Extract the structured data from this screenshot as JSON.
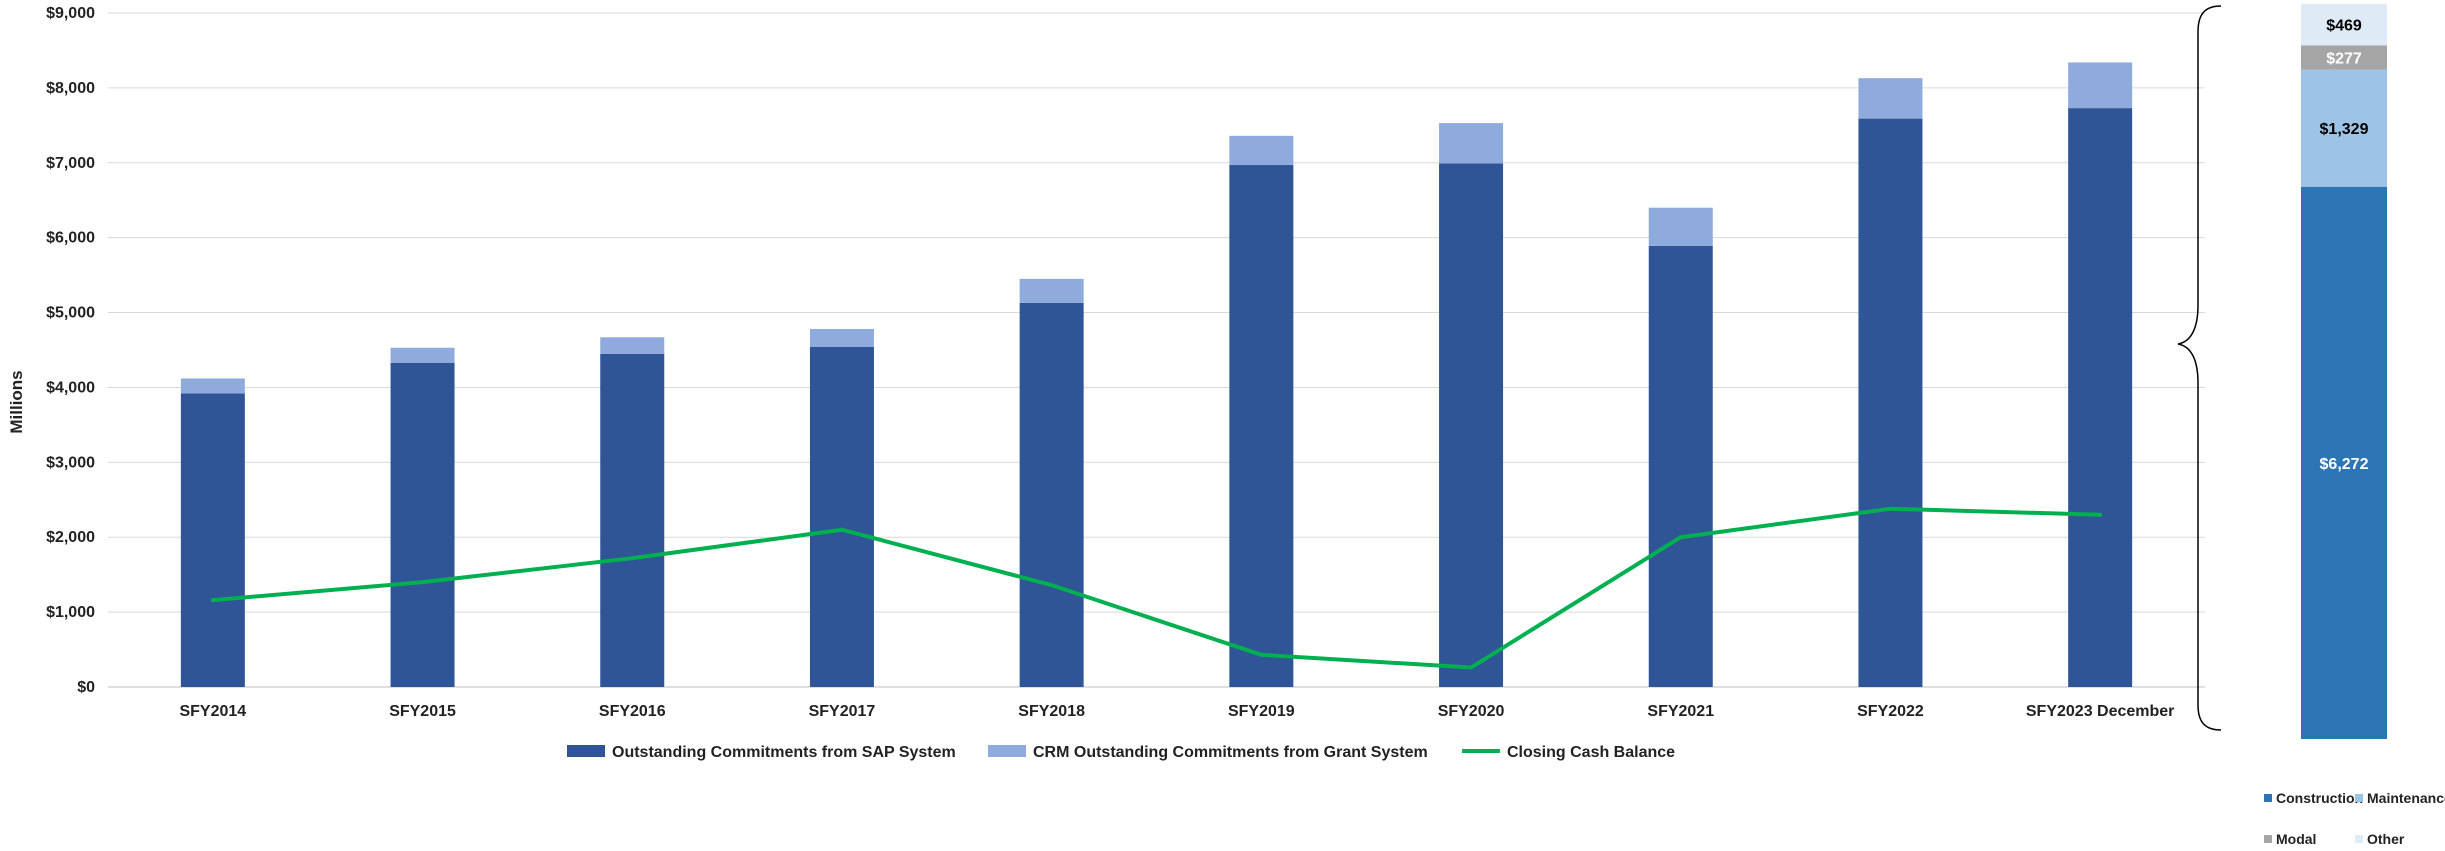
{
  "chart_data": [
    {
      "type": "bar",
      "stacked": true,
      "title": "",
      "xlabel": "",
      "ylabel": "Millions",
      "ylim": [
        0,
        9000
      ],
      "yticks": [
        "$0",
        "$1,000",
        "$2,000",
        "$3,000",
        "$4,000",
        "$5,000",
        "$6,000",
        "$7,000",
        "$8,000",
        "$9,000"
      ],
      "grid": true,
      "legend_position": "bottom",
      "categories": [
        "SFY2014",
        "SFY2015",
        "SFY2016",
        "SFY2017",
        "SFY2018",
        "SFY2019",
        "SFY2020",
        "SFY2021",
        "SFY2022",
        "SFY2023 December"
      ],
      "series": [
        {
          "name": "Outstanding Commitments from SAP System",
          "kind": "bar",
          "color": "#2F5597",
          "values": [
            3920,
            4330,
            4450,
            4540,
            5130,
            6970,
            6990,
            5890,
            7590,
            7730
          ]
        },
        {
          "name": "CRM Outstanding Commitments from Grant System",
          "kind": "bar",
          "color": "#8FAADC",
          "values": [
            200,
            200,
            220,
            240,
            320,
            390,
            540,
            510,
            540,
            610
          ]
        },
        {
          "name": "Closing Cash Balance",
          "kind": "line",
          "color": "#00B050",
          "values": [
            1160,
            1400,
            1720,
            2100,
            1360,
            430,
            260,
            2000,
            2380,
            2300
          ]
        }
      ]
    },
    {
      "type": "bar",
      "stacked": true,
      "title": "",
      "legend_position": "bottom",
      "categories": [
        ""
      ],
      "series": [
        {
          "name": "Construction",
          "label": "$6,272",
          "color": "#2E75B6",
          "values": [
            6272
          ]
        },
        {
          "name": "Maintenance",
          "label": "$1,329",
          "color": "#9DC3E6",
          "values": [
            1329
          ]
        },
        {
          "name": "Modal",
          "label": "$277",
          "color": "#A5A5A5",
          "values": [
            277
          ]
        },
        {
          "name": "Other",
          "label": "$469",
          "color": "#DEEBF7",
          "values": [
            469
          ]
        }
      ]
    }
  ]
}
